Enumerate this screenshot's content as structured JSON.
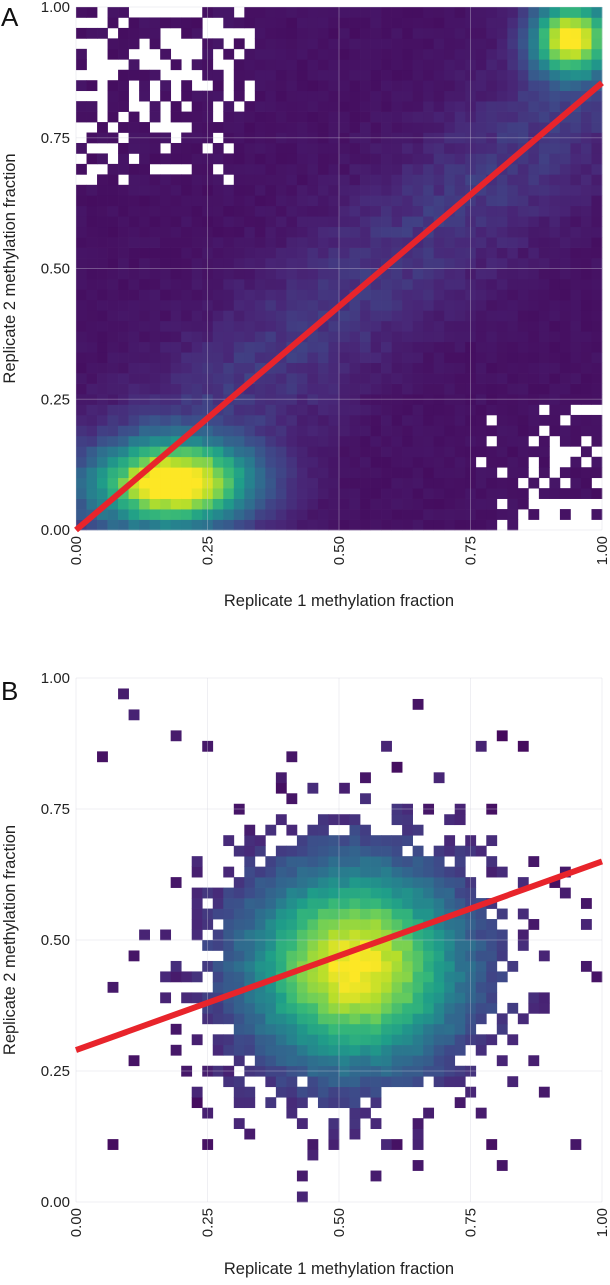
{
  "panels": [
    {
      "letter": "A"
    },
    {
      "letter": "B"
    }
  ],
  "chart_data": [
    {
      "type": "heatmap",
      "subtype": "2d-histogram",
      "xlabel": "Replicate 1 methylation fraction",
      "ylabel": "Replicate 2 methylation fraction",
      "xlim": [
        0,
        1
      ],
      "ylim": [
        0,
        1
      ],
      "xticks": [
        "0.00",
        "0.25",
        "0.50",
        "0.75",
        "1.00"
      ],
      "yticks": [
        "0.00",
        "0.25",
        "0.50",
        "0.75",
        "1.00"
      ],
      "grid": true,
      "bins": 50,
      "colormap": "viridis",
      "density_clusters": [
        {
          "x": 0.19,
          "y": 0.09,
          "sx": 0.1,
          "sy": 0.055,
          "weight": 1.0
        },
        {
          "x": 0.94,
          "y": 0.94,
          "sx": 0.05,
          "sy": 0.05,
          "weight": 0.95
        }
      ],
      "regression_line": {
        "x": [
          0,
          1
        ],
        "y": [
          0.0,
          0.855
        ],
        "color": "#e8242b"
      },
      "accent_color": "#e8242b"
    },
    {
      "type": "heatmap",
      "subtype": "2d-histogram",
      "xlabel": "Replicate 1 methylation fraction",
      "ylabel": "Replicate 2 methylation fraction",
      "xlim": [
        0,
        1
      ],
      "ylim": [
        0,
        1
      ],
      "xticks": [
        "0.00",
        "0.25",
        "0.50",
        "0.75",
        "1.00"
      ],
      "yticks": [
        "0.00",
        "0.25",
        "0.50",
        "0.75",
        "1.00"
      ],
      "grid": true,
      "bins": 50,
      "colormap": "viridis",
      "density_clusters": [
        {
          "x": 0.53,
          "y": 0.45,
          "sx": 0.14,
          "sy": 0.13,
          "weight": 1.0
        }
      ],
      "regression_line": {
        "x": [
          0,
          1
        ],
        "y": [
          0.29,
          0.65
        ],
        "color": "#e8242b"
      },
      "accent_color": "#e8242b"
    }
  ]
}
